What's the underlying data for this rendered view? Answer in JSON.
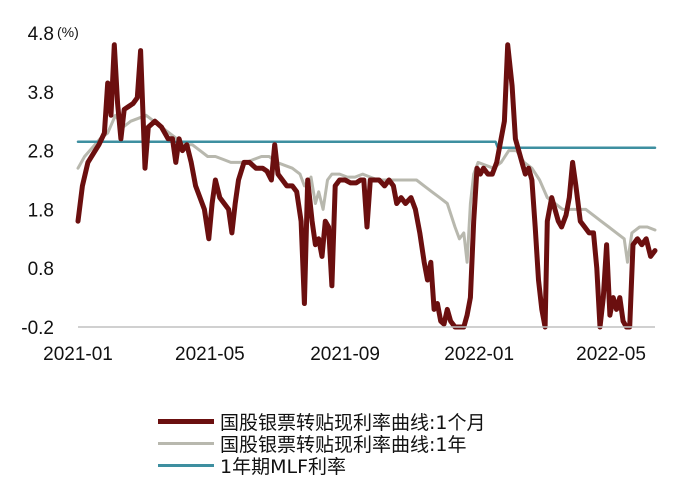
{
  "chart_data": {
    "type": "line",
    "unit": "(%)",
    "y_ticks": [
      "4.8",
      "3.8",
      "2.8",
      "1.8",
      "0.8",
      "-0.2"
    ],
    "ylim": [
      -0.2,
      4.8
    ],
    "x_ticks": [
      "2021-01",
      "2021-05",
      "2021-09",
      "2022-01",
      "2022-05"
    ],
    "x_range": [
      "2021-01-01",
      "2022-06-10"
    ],
    "series": [
      {
        "name": "国股银票转贴现利率曲线:1个月",
        "color": "#6b0f0f",
        "points": [
          [
            "2021-01-01",
            1.6
          ],
          [
            "2021-01-05",
            2.2
          ],
          [
            "2021-01-10",
            2.6
          ],
          [
            "2021-01-15",
            2.75
          ],
          [
            "2021-01-20",
            2.9
          ],
          [
            "2021-01-25",
            3.1
          ],
          [
            "2021-01-28",
            3.95
          ],
          [
            "2021-01-31",
            3.4
          ],
          [
            "2021-02-03",
            4.6
          ],
          [
            "2021-02-06",
            3.6
          ],
          [
            "2021-02-09",
            3.0
          ],
          [
            "2021-02-12",
            3.5
          ],
          [
            "2021-02-16",
            3.55
          ],
          [
            "2021-02-20",
            3.6
          ],
          [
            "2021-02-24",
            3.7
          ],
          [
            "2021-02-27",
            4.5
          ],
          [
            "2021-03-01",
            3.5
          ],
          [
            "2021-03-03",
            2.5
          ],
          [
            "2021-03-06",
            3.2
          ],
          [
            "2021-03-12",
            3.3
          ],
          [
            "2021-03-18",
            3.2
          ],
          [
            "2021-03-24",
            3.0
          ],
          [
            "2021-03-28",
            3.0
          ],
          [
            "2021-03-31",
            2.6
          ],
          [
            "2021-04-03",
            3.0
          ],
          [
            "2021-04-06",
            2.8
          ],
          [
            "2021-04-10",
            2.9
          ],
          [
            "2021-04-14",
            2.6
          ],
          [
            "2021-04-18",
            2.2
          ],
          [
            "2021-04-22",
            2.0
          ],
          [
            "2021-04-26",
            1.8
          ],
          [
            "2021-04-30",
            1.3
          ],
          [
            "2021-05-03",
            1.9
          ],
          [
            "2021-05-06",
            2.3
          ],
          [
            "2021-05-10",
            2.0
          ],
          [
            "2021-05-14",
            1.9
          ],
          [
            "2021-05-18",
            1.8
          ],
          [
            "2021-05-21",
            1.4
          ],
          [
            "2021-05-24",
            1.9
          ],
          [
            "2021-05-27",
            2.3
          ],
          [
            "2021-06-01",
            2.6
          ],
          [
            "2021-06-06",
            2.6
          ],
          [
            "2021-06-12",
            2.5
          ],
          [
            "2021-06-18",
            2.5
          ],
          [
            "2021-06-22",
            2.45
          ],
          [
            "2021-06-26",
            2.3
          ],
          [
            "2021-06-29",
            2.9
          ],
          [
            "2021-07-02",
            2.4
          ],
          [
            "2021-07-06",
            2.3
          ],
          [
            "2021-07-10",
            2.2
          ],
          [
            "2021-07-15",
            2.2
          ],
          [
            "2021-07-19",
            2.1
          ],
          [
            "2021-07-23",
            1.6
          ],
          [
            "2021-07-26",
            0.2
          ],
          [
            "2021-07-29",
            2.3
          ],
          [
            "2021-08-02",
            1.6
          ],
          [
            "2021-08-05",
            1.2
          ],
          [
            "2021-08-08",
            1.3
          ],
          [
            "2021-08-11",
            1.0
          ],
          [
            "2021-08-14",
            1.6
          ],
          [
            "2021-08-17",
            1.5
          ],
          [
            "2021-08-20",
            0.5
          ],
          [
            "2021-08-23",
            2.2
          ],
          [
            "2021-08-27",
            2.3
          ],
          [
            "2021-09-01",
            2.3
          ],
          [
            "2021-09-06",
            2.25
          ],
          [
            "2021-09-11",
            2.25
          ],
          [
            "2021-09-15",
            2.3
          ],
          [
            "2021-09-18",
            2.3
          ],
          [
            "2021-09-21",
            1.5
          ],
          [
            "2021-09-24",
            2.3
          ],
          [
            "2021-09-28",
            2.3
          ],
          [
            "2021-10-02",
            2.3
          ],
          [
            "2021-10-07",
            2.2
          ],
          [
            "2021-10-11",
            2.3
          ],
          [
            "2021-10-15",
            2.2
          ],
          [
            "2021-10-18",
            1.9
          ],
          [
            "2021-10-22",
            2.0
          ],
          [
            "2021-10-26",
            1.9
          ],
          [
            "2021-10-31",
            2.0
          ],
          [
            "2021-11-04",
            1.8
          ],
          [
            "2021-11-08",
            1.4
          ],
          [
            "2021-11-12",
            0.9
          ],
          [
            "2021-11-15",
            0.6
          ],
          [
            "2021-11-18",
            0.9
          ],
          [
            "2021-11-21",
            0.1
          ],
          [
            "2021-11-24",
            0.2
          ],
          [
            "2021-11-27",
            -0.1
          ],
          [
            "2021-11-30",
            -0.15
          ],
          [
            "2021-12-03",
            0.1
          ],
          [
            "2021-12-06",
            -0.1
          ],
          [
            "2021-12-10",
            -0.2
          ],
          [
            "2021-12-14",
            -0.2
          ],
          [
            "2021-12-18",
            -0.2
          ],
          [
            "2021-12-21",
            0.0
          ],
          [
            "2021-12-24",
            0.3
          ],
          [
            "2021-12-27",
            1.6
          ],
          [
            "2021-12-30",
            2.5
          ],
          [
            "2022-01-02",
            2.4
          ],
          [
            "2022-01-05",
            2.5
          ],
          [
            "2022-01-09",
            2.4
          ],
          [
            "2022-01-13",
            2.4
          ],
          [
            "2022-01-17",
            2.6
          ],
          [
            "2022-01-20",
            2.9
          ],
          [
            "2022-01-24",
            3.3
          ],
          [
            "2022-01-27",
            4.6
          ],
          [
            "2022-01-31",
            3.9
          ],
          [
            "2022-02-03",
            3.0
          ],
          [
            "2022-02-06",
            2.8
          ],
          [
            "2022-02-09",
            2.6
          ],
          [
            "2022-02-12",
            2.4
          ],
          [
            "2022-02-15",
            2.5
          ],
          [
            "2022-02-18",
            2.3
          ],
          [
            "2022-02-21",
            1.5
          ],
          [
            "2022-02-24",
            0.6
          ],
          [
            "2022-02-27",
            0.1
          ],
          [
            "2022-03-02",
            -0.2
          ],
          [
            "2022-03-04",
            1.6
          ],
          [
            "2022-03-08",
            2.0
          ],
          [
            "2022-03-11",
            1.8
          ],
          [
            "2022-03-14",
            1.6
          ],
          [
            "2022-03-17",
            1.5
          ],
          [
            "2022-03-21",
            1.7
          ],
          [
            "2022-03-24",
            2.0
          ],
          [
            "2022-03-27",
            2.6
          ],
          [
            "2022-03-30",
            2.2
          ],
          [
            "2022-04-03",
            1.6
          ],
          [
            "2022-04-07",
            1.5
          ],
          [
            "2022-04-11",
            1.4
          ],
          [
            "2022-04-15",
            1.4
          ],
          [
            "2022-04-18",
            0.8
          ],
          [
            "2022-04-21",
            -0.2
          ],
          [
            "2022-04-24",
            0.3
          ],
          [
            "2022-04-27",
            1.2
          ],
          [
            "2022-04-30",
            0.0
          ],
          [
            "2022-05-03",
            0.3
          ],
          [
            "2022-05-06",
            0.1
          ],
          [
            "2022-05-09",
            0.3
          ],
          [
            "2022-05-12",
            -0.1
          ],
          [
            "2022-05-15",
            -0.2
          ],
          [
            "2022-05-18",
            -0.2
          ],
          [
            "2022-05-21",
            1.2
          ],
          [
            "2022-05-25",
            1.3
          ],
          [
            "2022-05-29",
            1.2
          ],
          [
            "2022-06-02",
            1.3
          ],
          [
            "2022-06-06",
            1.0
          ],
          [
            "2022-06-10",
            1.1
          ]
        ]
      },
      {
        "name": "国股银票转贴现利率曲线:1年",
        "color": "#b8b8ae",
        "points": [
          [
            "2021-01-01",
            2.5
          ],
          [
            "2021-01-07",
            2.7
          ],
          [
            "2021-01-14",
            2.85
          ],
          [
            "2021-01-21",
            3.0
          ],
          [
            "2021-01-28",
            3.1
          ],
          [
            "2021-02-04",
            3.4
          ],
          [
            "2021-02-11",
            3.2
          ],
          [
            "2021-02-18",
            3.3
          ],
          [
            "2021-02-25",
            3.35
          ],
          [
            "2021-03-04",
            3.4
          ],
          [
            "2021-03-11",
            3.3
          ],
          [
            "2021-03-18",
            3.2
          ],
          [
            "2021-03-25",
            3.1
          ],
          [
            "2021-04-01",
            3.0
          ],
          [
            "2021-04-08",
            2.9
          ],
          [
            "2021-04-15",
            2.9
          ],
          [
            "2021-04-22",
            2.8
          ],
          [
            "2021-04-29",
            2.7
          ],
          [
            "2021-05-06",
            2.7
          ],
          [
            "2021-05-13",
            2.65
          ],
          [
            "2021-05-20",
            2.6
          ],
          [
            "2021-05-27",
            2.6
          ],
          [
            "2021-06-03",
            2.6
          ],
          [
            "2021-06-10",
            2.65
          ],
          [
            "2021-06-17",
            2.7
          ],
          [
            "2021-06-24",
            2.7
          ],
          [
            "2021-07-01",
            2.6
          ],
          [
            "2021-07-08",
            2.55
          ],
          [
            "2021-07-15",
            2.5
          ],
          [
            "2021-07-22",
            2.4
          ],
          [
            "2021-07-26",
            2.2
          ],
          [
            "2021-08-01",
            2.35
          ],
          [
            "2021-08-05",
            1.9
          ],
          [
            "2021-08-08",
            2.1
          ],
          [
            "2021-08-12",
            1.8
          ],
          [
            "2021-08-16",
            2.3
          ],
          [
            "2021-08-20",
            2.4
          ],
          [
            "2021-08-27",
            2.4
          ],
          [
            "2021-09-03",
            2.35
          ],
          [
            "2021-09-10",
            2.35
          ],
          [
            "2021-09-17",
            2.4
          ],
          [
            "2021-09-24",
            2.35
          ],
          [
            "2021-10-01",
            2.3
          ],
          [
            "2021-10-08",
            2.3
          ],
          [
            "2021-10-15",
            2.3
          ],
          [
            "2021-10-22",
            2.3
          ],
          [
            "2021-10-29",
            2.3
          ],
          [
            "2021-11-05",
            2.3
          ],
          [
            "2021-11-12",
            2.2
          ],
          [
            "2021-11-19",
            2.1
          ],
          [
            "2021-11-26",
            2.0
          ],
          [
            "2021-12-03",
            1.9
          ],
          [
            "2021-12-10",
            1.5
          ],
          [
            "2021-12-14",
            1.3
          ],
          [
            "2021-12-18",
            1.4
          ],
          [
            "2021-12-21",
            0.9
          ],
          [
            "2021-12-24",
            1.9
          ],
          [
            "2021-12-27",
            2.4
          ],
          [
            "2021-12-31",
            2.6
          ],
          [
            "2022-01-07",
            2.55
          ],
          [
            "2022-01-14",
            2.5
          ],
          [
            "2022-01-21",
            2.6
          ],
          [
            "2022-01-28",
            2.8
          ],
          [
            "2022-02-04",
            2.8
          ],
          [
            "2022-02-11",
            2.6
          ],
          [
            "2022-02-18",
            2.5
          ],
          [
            "2022-02-25",
            2.3
          ],
          [
            "2022-03-04",
            2.0
          ],
          [
            "2022-03-11",
            1.9
          ],
          [
            "2022-03-18",
            1.8
          ],
          [
            "2022-03-25",
            1.8
          ],
          [
            "2022-04-01",
            1.8
          ],
          [
            "2022-04-08",
            1.8
          ],
          [
            "2022-04-15",
            1.7
          ],
          [
            "2022-04-22",
            1.6
          ],
          [
            "2022-04-29",
            1.5
          ],
          [
            "2022-05-06",
            1.4
          ],
          [
            "2022-05-13",
            1.3
          ],
          [
            "2022-05-16",
            0.9
          ],
          [
            "2022-05-20",
            1.4
          ],
          [
            "2022-05-27",
            1.5
          ],
          [
            "2022-06-03",
            1.5
          ],
          [
            "2022-06-10",
            1.45
          ]
        ]
      },
      {
        "name": "1年期MLF利率",
        "color": "#3e8fa0",
        "points": [
          [
            "2021-01-01",
            2.95
          ],
          [
            "2022-01-16",
            2.95
          ],
          [
            "2022-01-18",
            2.85
          ],
          [
            "2022-06-10",
            2.85
          ]
        ]
      }
    ]
  }
}
